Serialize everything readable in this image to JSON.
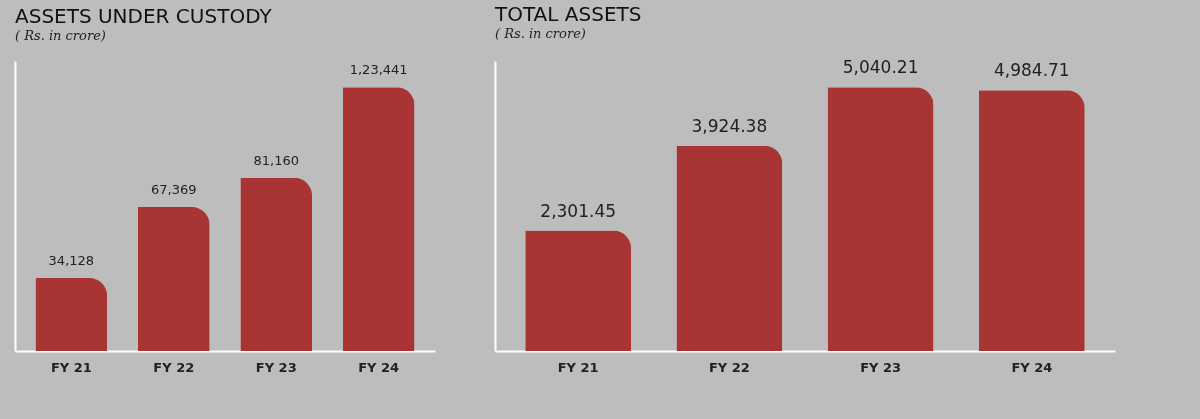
{
  "chart_data": [
    {
      "type": "bar",
      "title": "ASSETS UNDER CUSTODY",
      "subtitle": "( Rs. in crore)",
      "categories": [
        "FY 21",
        "FY 22",
        "FY 23",
        "FY 24"
      ],
      "values": [
        34128,
        67369,
        81160,
        123441
      ],
      "value_labels": [
        "34,128",
        "67,369",
        "81,160",
        "1,23,441"
      ],
      "color": "#a83434",
      "tick_labels": "x",
      "grid": false
    },
    {
      "type": "bar",
      "title": "TOTAL ASSETS",
      "subtitle": "( Rs. in crore)",
      "categories": [
        "FY 21",
        "FY 22",
        "FY 23",
        "FY 24"
      ],
      "values": [
        2301.45,
        3924.38,
        5040.21,
        4984.71
      ],
      "value_labels": [
        "2,301.45",
        "3,924.38",
        "5,040.21",
        "4,984.71"
      ],
      "color": "#a83434",
      "tick_labels": "x",
      "grid": false
    }
  ]
}
